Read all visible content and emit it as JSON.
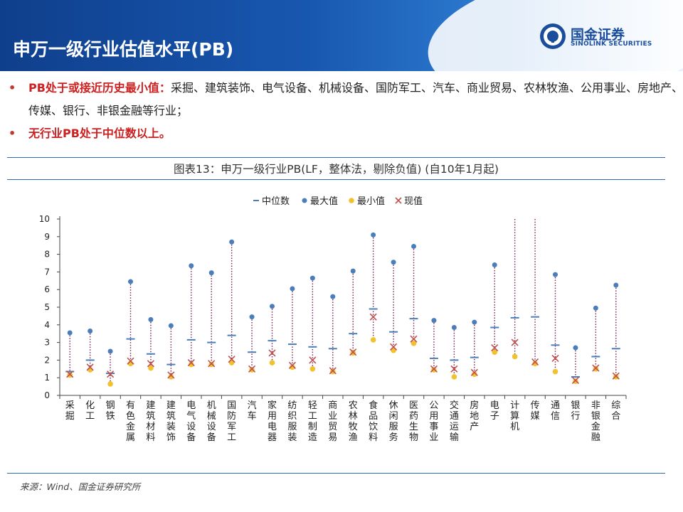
{
  "header": {
    "title": "申万一级行业估值水平(PB)"
  },
  "brand": {
    "name_cn": "国金证券",
    "name_en": "SINOLINK SECURITIES"
  },
  "bullets": [
    {
      "highlight": "PB处于或接近历史最小值：",
      "text": "采掘、建筑装饰、电气设备、机械设备、国防军工、汽车、商业贸易、农林牧渔、公用事业、房地产、传媒、银行、非银金融等行业；"
    },
    {
      "highlight": "无行业PB处于中位数以上。",
      "text": ""
    }
  ],
  "figure_title": "图表13：申万一级行业PB(LF，整体法，剔除负值) (自10年1月起)",
  "source": "来源：Wind、国金证券研究所",
  "colors": {
    "median": "#4a7ebb",
    "max": "#4a7ebb",
    "min": "#f2c12e",
    "current": "#c0504d",
    "dotted_line": "#7a1f55",
    "accent_red": "#cc1f1f",
    "header_blue": "#1857b0"
  },
  "chart_data": {
    "type": "scatter",
    "y_ticks": [
      "0",
      "1",
      "2",
      "3",
      "4",
      "5",
      "6",
      "7",
      "8",
      "9",
      "10"
    ],
    "ylim": [
      0,
      10
    ],
    "legend": [
      "中位数",
      "最大值",
      "最小值",
      "现值"
    ],
    "legend_position": "top",
    "categories": [
      "采掘",
      "化工",
      "钢铁",
      "有色金属",
      "建筑材料",
      "建筑装饰",
      "电气设备",
      "机械设备",
      "国防军工",
      "汽车",
      "家用电器",
      "纺织服装",
      "轻工制造",
      "商业贸易",
      "农林牧渔",
      "食品饮料",
      "休闲服务",
      "医药生物",
      "公用事业",
      "交通运输",
      "房地产",
      "电子",
      "计算机",
      "传媒",
      "通信",
      "银行",
      "非银金融",
      "综合"
    ],
    "series": [
      {
        "name": "中位数",
        "values": [
          1.35,
          2.0,
          1.25,
          3.2,
          2.35,
          1.75,
          3.15,
          3.0,
          3.4,
          2.45,
          3.1,
          2.9,
          2.75,
          2.65,
          3.5,
          4.9,
          3.6,
          4.35,
          2.1,
          2.0,
          2.15,
          3.85,
          4.4,
          4.45,
          2.85,
          1.05,
          2.2,
          2.65
        ]
      },
      {
        "name": "最大值",
        "values": [
          3.55,
          3.65,
          2.5,
          6.45,
          4.3,
          3.95,
          7.35,
          6.95,
          8.7,
          4.45,
          5.05,
          6.05,
          6.65,
          5.6,
          7.05,
          9.1,
          7.55,
          8.45,
          4.25,
          3.85,
          4.15,
          7.4,
          10.0,
          10.0,
          6.85,
          2.7,
          4.95,
          6.25
        ]
      },
      {
        "name": "最小值",
        "values": [
          1.15,
          1.45,
          0.65,
          1.8,
          1.55,
          1.05,
          1.75,
          1.75,
          1.85,
          1.45,
          1.85,
          1.6,
          1.5,
          1.35,
          2.4,
          3.15,
          2.55,
          2.95,
          1.45,
          1.05,
          1.2,
          2.45,
          2.2,
          1.8,
          1.35,
          0.8,
          1.5,
          1.05
        ]
      },
      {
        "name": "现值",
        "values": [
          1.2,
          1.6,
          1.2,
          1.95,
          1.8,
          1.15,
          1.85,
          1.8,
          2.05,
          1.5,
          2.4,
          1.7,
          2.0,
          1.4,
          2.45,
          4.45,
          2.75,
          3.2,
          1.5,
          1.5,
          1.3,
          2.7,
          3.0,
          1.9,
          2.1,
          0.85,
          1.55,
          1.1
        ]
      }
    ]
  }
}
